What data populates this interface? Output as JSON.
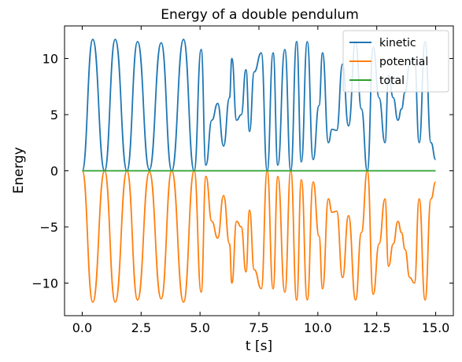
{
  "chart_data": {
    "type": "line",
    "title": "Energy of a double pendulum",
    "xlabel": "t [s]",
    "ylabel": "Energy",
    "xlim": [
      -0.75,
      15.75
    ],
    "ylim": [
      -12.9,
      12.9
    ],
    "xticks": [
      0,
      2.5,
      5,
      7.5,
      10,
      12.5,
      15
    ],
    "xtick_labels": [
      "0.0",
      "2.5",
      "5.0",
      "7.5",
      "10.0",
      "12.5",
      "15.0"
    ],
    "yticks": [
      -10,
      -5,
      0,
      5,
      10
    ],
    "ytick_labels": [
      "−10",
      "−5",
      "0",
      "5",
      "10"
    ],
    "grid": false,
    "legend_position": "top-right",
    "series": [
      {
        "name": "kinetic",
        "color": "#1f77b4",
        "x": [
          0.0,
          0.45,
          0.95,
          1.4,
          1.9,
          2.35,
          2.85,
          3.35,
          3.8,
          4.3,
          4.75,
          5.05,
          5.25,
          5.5,
          5.75,
          6.0,
          6.25,
          6.35,
          6.55,
          6.75,
          6.95,
          7.1,
          7.3,
          7.6,
          7.85,
          8.1,
          8.3,
          8.6,
          8.85,
          9.1,
          9.3,
          9.55,
          9.8,
          10.05,
          10.2,
          10.45,
          10.6,
          10.8,
          11.05,
          11.3,
          11.6,
          11.85,
          12.1,
          12.35,
          12.6,
          12.85,
          13.0,
          13.2,
          13.4,
          13.55,
          13.7,
          13.9,
          14.1,
          14.3,
          14.55,
          14.8,
          15.0
        ],
        "y": [
          0.0,
          11.7,
          0.0,
          11.7,
          0.0,
          11.5,
          0.1,
          11.4,
          0.0,
          11.7,
          0.0,
          10.8,
          0.5,
          4.5,
          6.0,
          2.2,
          6.5,
          10.0,
          4.5,
          5.0,
          9.0,
          3.5,
          8.8,
          10.5,
          0.0,
          10.5,
          0.5,
          10.8,
          0.0,
          11.5,
          0.8,
          11.5,
          1.0,
          5.8,
          10.5,
          2.5,
          3.7,
          3.6,
          9.5,
          4.0,
          11.5,
          5.5,
          0.0,
          11.0,
          6.5,
          2.5,
          8.5,
          6.5,
          4.5,
          5.5,
          7.0,
          9.5,
          10.0,
          2.5,
          11.5,
          2.5,
          1.0
        ]
      },
      {
        "name": "potential",
        "color": "#ff7f0e",
        "x": [
          0.0,
          0.45,
          0.95,
          1.4,
          1.9,
          2.35,
          2.85,
          3.35,
          3.8,
          4.3,
          4.75,
          5.05,
          5.25,
          5.5,
          5.75,
          6.0,
          6.25,
          6.35,
          6.55,
          6.75,
          6.95,
          7.1,
          7.3,
          7.6,
          7.85,
          8.1,
          8.3,
          8.6,
          8.85,
          9.1,
          9.3,
          9.55,
          9.8,
          10.05,
          10.2,
          10.45,
          10.6,
          10.8,
          11.05,
          11.3,
          11.6,
          11.85,
          12.1,
          12.35,
          12.6,
          12.85,
          13.0,
          13.2,
          13.4,
          13.55,
          13.7,
          13.9,
          14.1,
          14.3,
          14.55,
          14.8,
          15.0
        ],
        "y": [
          0.0,
          -11.7,
          0.0,
          -11.7,
          0.0,
          -11.5,
          -0.1,
          -11.4,
          0.0,
          -11.7,
          0.0,
          -10.8,
          -0.5,
          -4.5,
          -6.0,
          -2.2,
          -6.5,
          -10.0,
          -4.5,
          -5.0,
          -9.0,
          -3.5,
          -8.8,
          -10.5,
          0.0,
          -10.5,
          -0.5,
          -10.8,
          0.0,
          -11.5,
          -0.8,
          -11.5,
          -1.0,
          -5.8,
          -10.5,
          -2.5,
          -3.7,
          -3.6,
          -9.5,
          -4.0,
          -11.5,
          -5.5,
          0.0,
          -11.0,
          -6.5,
          -2.5,
          -8.5,
          -6.5,
          -4.5,
          -5.5,
          -7.0,
          -9.5,
          -10.0,
          -2.5,
          -11.5,
          -2.5,
          -1.0
        ]
      },
      {
        "name": "total",
        "color": "#2ca02c",
        "x": [
          0.0,
          15.0
        ],
        "y": [
          0.0,
          0.0
        ]
      }
    ]
  }
}
